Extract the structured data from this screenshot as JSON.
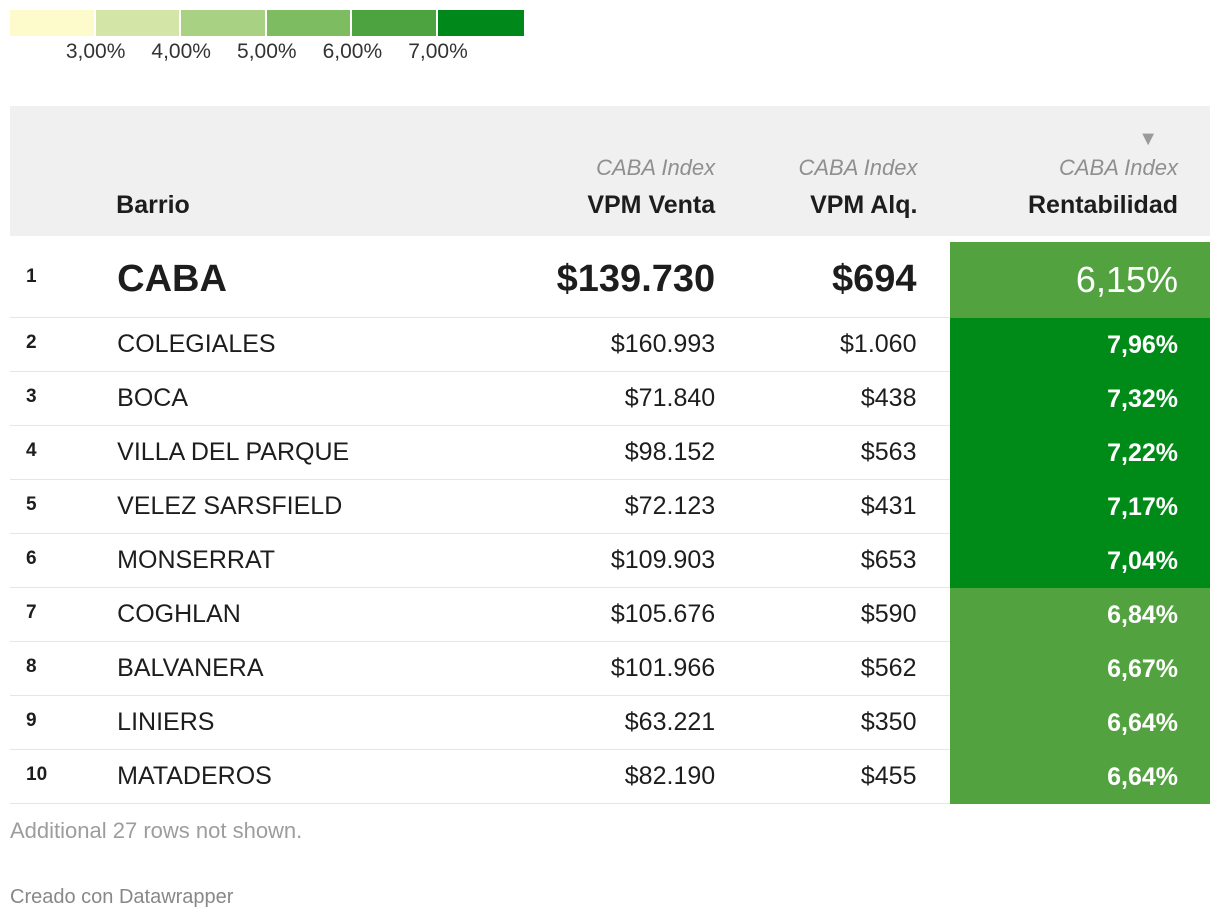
{
  "legend": {
    "colors": [
      "#fdfbcb",
      "#d4e6a7",
      "#a9d184",
      "#7ebc62",
      "#4ca33f",
      "#00891a"
    ],
    "ticks": [
      "3,00%",
      "4,00%",
      "5,00%",
      "6,00%",
      "7,00%"
    ]
  },
  "table": {
    "headers": {
      "barrio": "Barrio",
      "venta_sub": "CABA Index",
      "venta": "VPM Venta",
      "alq_sub": "CABA Index",
      "alq": "VPM Alq.",
      "rent_sub": "CABA Index",
      "rent": "Rentabilidad",
      "sort_icon": "▼"
    },
    "rows": [
      {
        "rank": "1",
        "barrio": "CABA",
        "venta": "$139.730",
        "alq": "$694",
        "rent": "6,15%",
        "color": "#52a33f"
      },
      {
        "rank": "2",
        "barrio": "COLEGIALES",
        "venta": "$160.993",
        "alq": "$1.060",
        "rent": "7,96%",
        "color": "#008a17"
      },
      {
        "rank": "3",
        "barrio": "BOCA",
        "venta": "$71.840",
        "alq": "$438",
        "rent": "7,32%",
        "color": "#008a17"
      },
      {
        "rank": "4",
        "barrio": "VILLA DEL PARQUE",
        "venta": "$98.152",
        "alq": "$563",
        "rent": "7,22%",
        "color": "#008a17"
      },
      {
        "rank": "5",
        "barrio": "VELEZ SARSFIELD",
        "venta": "$72.123",
        "alq": "$431",
        "rent": "7,17%",
        "color": "#008a17"
      },
      {
        "rank": "6",
        "barrio": "MONSERRAT",
        "venta": "$109.903",
        "alq": "$653",
        "rent": "7,04%",
        "color": "#008a17"
      },
      {
        "rank": "7",
        "barrio": "COGHLAN",
        "venta": "$105.676",
        "alq": "$590",
        "rent": "6,84%",
        "color": "#52a33f"
      },
      {
        "rank": "8",
        "barrio": "BALVANERA",
        "venta": "$101.966",
        "alq": "$562",
        "rent": "6,67%",
        "color": "#52a33f"
      },
      {
        "rank": "9",
        "barrio": "LINIERS",
        "venta": "$63.221",
        "alq": "$350",
        "rent": "6,64%",
        "color": "#52a33f"
      },
      {
        "rank": "10",
        "barrio": "MATADEROS",
        "venta": "$82.190",
        "alq": "$455",
        "rent": "6,64%",
        "color": "#52a33f"
      }
    ]
  },
  "footnote": "Additional 27 rows not shown.",
  "credit": "Creado con Datawrapper"
}
